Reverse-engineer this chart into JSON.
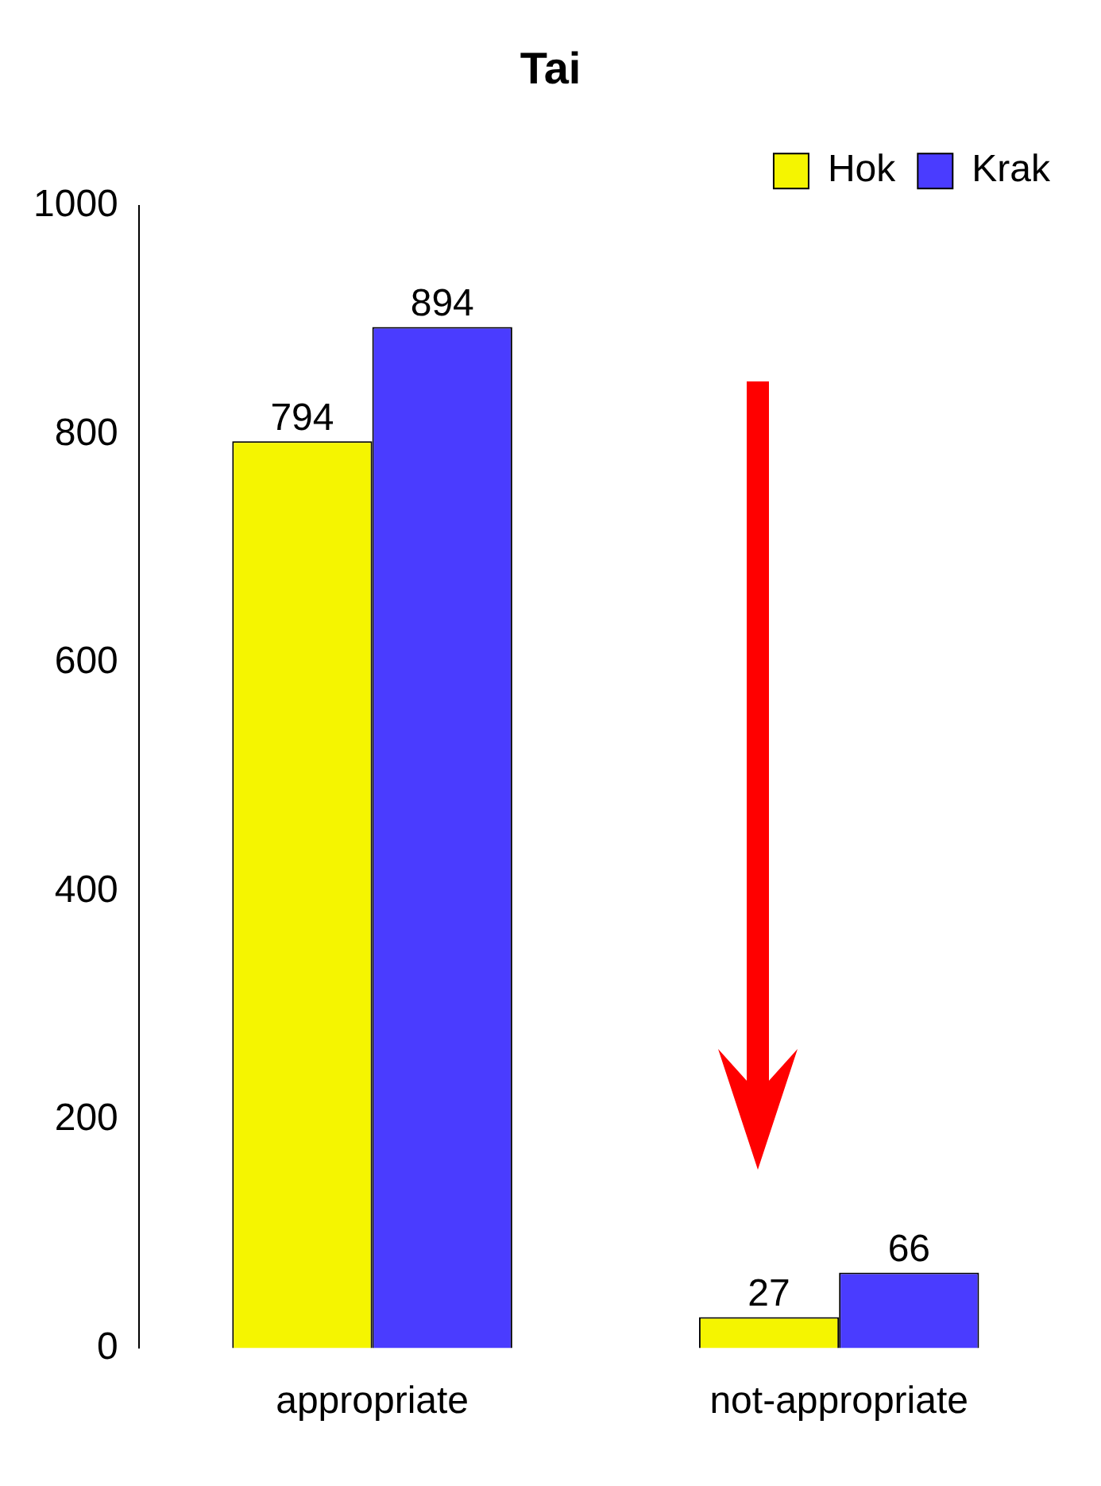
{
  "chart_data": {
    "type": "bar",
    "title": "Tai",
    "categories": [
      "appropriate",
      "not-appropriate"
    ],
    "series": [
      {
        "name": "Hok",
        "color": "#f5f500",
        "values": [
          794,
          27
        ]
      },
      {
        "name": "Krak",
        "color": "#4a3cff",
        "values": [
          894,
          66
        ]
      }
    ],
    "ylim": [
      0,
      1000
    ],
    "yticks": [
      0,
      200,
      400,
      600,
      800,
      1000
    ],
    "grid": false,
    "legend": "top right",
    "data_labels": true
  }
}
